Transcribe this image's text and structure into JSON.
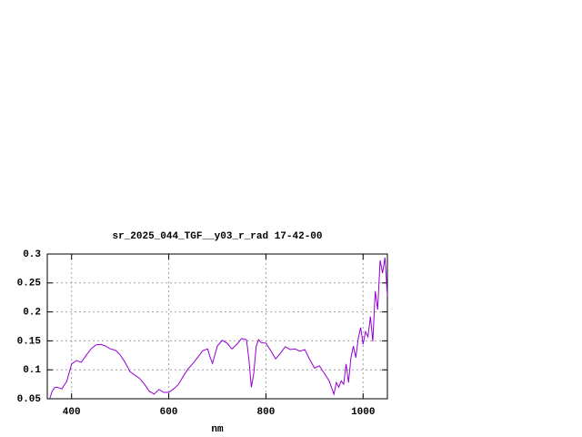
{
  "chart_data": {
    "type": "line",
    "title": "sr_2025_044_TGF__y03_r_rad 17-42-00",
    "xlabel": "nm",
    "xlim": [
      350,
      1050
    ],
    "xticks": [
      400,
      600,
      800,
      1000
    ],
    "ylim": [
      0.05,
      0.3
    ],
    "yticks": [
      0.05,
      0.1,
      0.15,
      0.2,
      0.25,
      0.3
    ],
    "grid": true,
    "x": [
      355,
      360,
      365,
      370,
      380,
      390,
      400,
      410,
      420,
      430,
      440,
      450,
      460,
      470,
      480,
      490,
      500,
      510,
      520,
      530,
      540,
      550,
      560,
      570,
      580,
      590,
      600,
      610,
      620,
      630,
      640,
      650,
      660,
      670,
      680,
      685,
      690,
      700,
      710,
      720,
      730,
      740,
      750,
      760,
      765,
      770,
      775,
      780,
      785,
      790,
      800,
      810,
      820,
      830,
      840,
      850,
      860,
      870,
      880,
      890,
      900,
      910,
      920,
      930,
      940,
      945,
      950,
      955,
      960,
      965,
      970,
      975,
      980,
      985,
      990,
      995,
      1000,
      1005,
      1010,
      1015,
      1020,
      1025,
      1030,
      1035,
      1040,
      1045,
      1050
    ],
    "series": [
      {
        "color": "#9400d3",
        "values": [
          0.05,
          0.063,
          0.069,
          0.07,
          0.067,
          0.08,
          0.11,
          0.116,
          0.113,
          0.125,
          0.136,
          0.143,
          0.144,
          0.141,
          0.136,
          0.134,
          0.126,
          0.113,
          0.097,
          0.091,
          0.085,
          0.075,
          0.063,
          0.058,
          0.066,
          0.061,
          0.061,
          0.067,
          0.075,
          0.089,
          0.102,
          0.111,
          0.122,
          0.133,
          0.136,
          0.122,
          0.111,
          0.141,
          0.151,
          0.146,
          0.136,
          0.144,
          0.154,
          0.152,
          0.118,
          0.07,
          0.094,
          0.141,
          0.152,
          0.147,
          0.146,
          0.133,
          0.119,
          0.129,
          0.14,
          0.135,
          0.136,
          0.132,
          0.135,
          0.118,
          0.103,
          0.107,
          0.094,
          0.081,
          0.058,
          0.078,
          0.07,
          0.081,
          0.075,
          0.11,
          0.078,
          0.121,
          0.141,
          0.121,
          0.154,
          0.173,
          0.144,
          0.166,
          0.157,
          0.192,
          0.149,
          0.236,
          0.204,
          0.289,
          0.267,
          0.294,
          0.228
        ]
      }
    ]
  }
}
